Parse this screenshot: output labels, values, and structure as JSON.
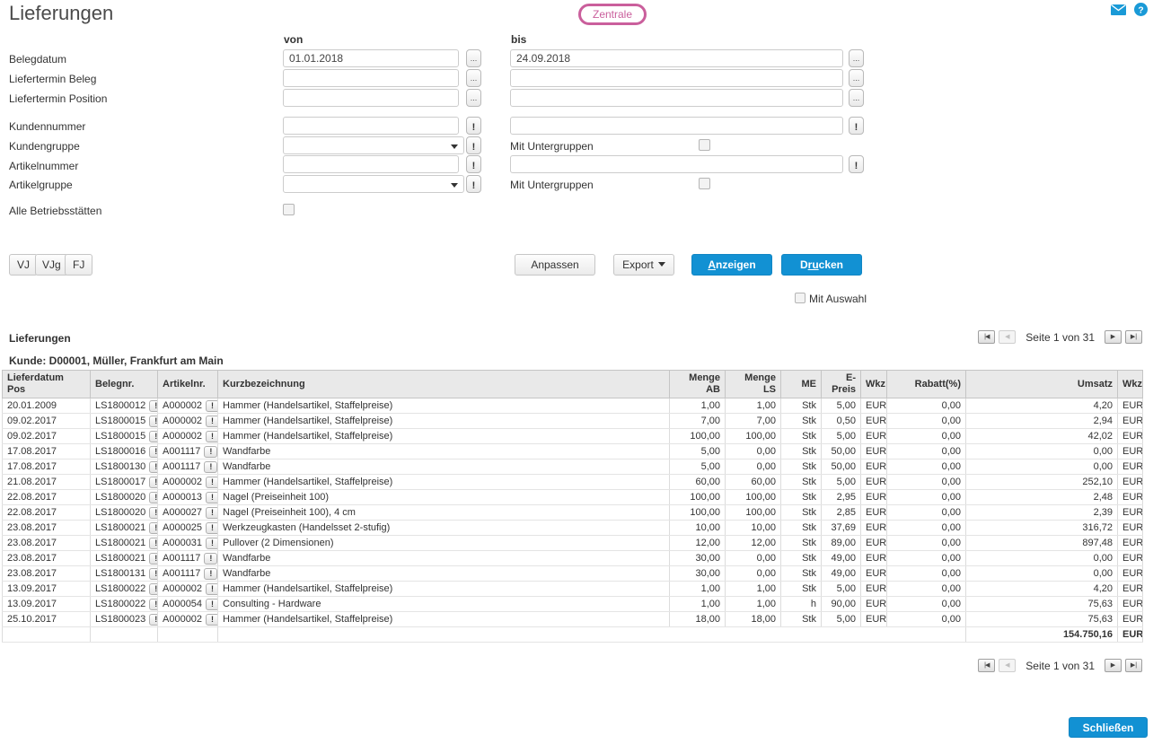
{
  "title": "Lieferungen",
  "top": {
    "zentrale_button": "Zentrale",
    "mail_icon": "mail-icon",
    "help_icon": "help-icon"
  },
  "filter": {
    "von_label": "von",
    "bis_label": "bis",
    "date_rows": [
      {
        "label": "Belegdatum",
        "von": "01.01.2018",
        "bis": "24.09.2018"
      },
      {
        "label": "Liefertermin Beleg",
        "von": "",
        "bis": ""
      },
      {
        "label": "Liefertermin Position",
        "von": "",
        "bis": ""
      }
    ],
    "kundennummer_label": "Kundennummer",
    "kundengruppe_label": "Kundengruppe",
    "artikelnummer_label": "Artikelnummer",
    "artikelgruppe_label": "Artikelgruppe",
    "mit_untergruppen_label_1": "Mit Untergruppen",
    "mit_untergruppen_label_2": "Mit Untergruppen",
    "alle_betriebsstaetten_label": "Alle Betriebsstätten"
  },
  "toolbar": {
    "vj": "VJ",
    "vjg": "VJg",
    "fj": "FJ",
    "anpassen": "Anpassen",
    "export": "Export",
    "anzeigen": {
      "pre": "",
      "key": "A",
      "post": "nzeigen"
    },
    "drucken": {
      "pre": "D",
      "key": "ru",
      "post": "cken"
    },
    "mit_auswahl": "Mit Auswahl"
  },
  "results": {
    "section_title": "Lieferungen",
    "customer_line": "Kunde: D00001, Müller, Frankfurt am Main",
    "pagination_text": "Seite 1 von 31",
    "close_button": "Schließen"
  },
  "table": {
    "headers": [
      "Lieferdatum\nPos",
      "Belegnr.",
      "Artikelnr.",
      "Kurzbezeichnung",
      "Menge AB",
      "Menge LS",
      "ME",
      "E-Preis",
      "Wkz",
      "Rabatt(%)",
      "Umsatz",
      "Wkz"
    ],
    "rows": [
      [
        "20.01.2009",
        "LS1800012",
        "A000002",
        "Hammer (Handelsartikel, Staffelpreise)",
        "1,00",
        "1,00",
        "Stk",
        "5,00",
        "EUR",
        "0,00",
        "4,20",
        "EUR"
      ],
      [
        "09.02.2017",
        "LS1800015",
        "A000002",
        "Hammer (Handelsartikel, Staffelpreise)",
        "7,00",
        "7,00",
        "Stk",
        "0,50",
        "EUR",
        "0,00",
        "2,94",
        "EUR"
      ],
      [
        "09.02.2017",
        "LS1800015",
        "A000002",
        "Hammer (Handelsartikel, Staffelpreise)",
        "100,00",
        "100,00",
        "Stk",
        "5,00",
        "EUR",
        "0,00",
        "42,02",
        "EUR"
      ],
      [
        "17.08.2017",
        "LS1800016",
        "A001117",
        "Wandfarbe",
        "5,00",
        "0,00",
        "Stk",
        "50,00",
        "EUR",
        "0,00",
        "0,00",
        "EUR"
      ],
      [
        "17.08.2017",
        "LS1800130",
        "A001117",
        "Wandfarbe",
        "5,00",
        "0,00",
        "Stk",
        "50,00",
        "EUR",
        "0,00",
        "0,00",
        "EUR"
      ],
      [
        "21.08.2017",
        "LS1800017",
        "A000002",
        "Hammer (Handelsartikel, Staffelpreise)",
        "60,00",
        "60,00",
        "Stk",
        "5,00",
        "EUR",
        "0,00",
        "252,10",
        "EUR"
      ],
      [
        "22.08.2017",
        "LS1800020",
        "A000013",
        "Nagel (Preiseinheit 100)",
        "100,00",
        "100,00",
        "Stk",
        "2,95",
        "EUR",
        "0,00",
        "2,48",
        "EUR"
      ],
      [
        "22.08.2017",
        "LS1800020",
        "A000027",
        "Nagel (Preiseinheit 100), 4 cm",
        "100,00",
        "100,00",
        "Stk",
        "2,85",
        "EUR",
        "0,00",
        "2,39",
        "EUR"
      ],
      [
        "23.08.2017",
        "LS1800021",
        "A000025",
        "Werkzeugkasten (Handelsset 2-stufig)",
        "10,00",
        "10,00",
        "Stk",
        "37,69",
        "EUR",
        "0,00",
        "316,72",
        "EUR"
      ],
      [
        "23.08.2017",
        "LS1800021",
        "A000031",
        "Pullover (2 Dimensionen)",
        "12,00",
        "12,00",
        "Stk",
        "89,00",
        "EUR",
        "0,00",
        "897,48",
        "EUR"
      ],
      [
        "23.08.2017",
        "LS1800021",
        "A001117",
        "Wandfarbe",
        "30,00",
        "0,00",
        "Stk",
        "49,00",
        "EUR",
        "0,00",
        "0,00",
        "EUR"
      ],
      [
        "23.08.2017",
        "LS1800131",
        "A001117",
        "Wandfarbe",
        "30,00",
        "0,00",
        "Stk",
        "49,00",
        "EUR",
        "0,00",
        "0,00",
        "EUR"
      ],
      [
        "13.09.2017",
        "LS1800022",
        "A000002",
        "Hammer (Handelsartikel, Staffelpreise)",
        "1,00",
        "1,00",
        "Stk",
        "5,00",
        "EUR",
        "0,00",
        "4,20",
        "EUR"
      ],
      [
        "13.09.2017",
        "LS1800022",
        "A000054",
        "Consulting - Hardware",
        "1,00",
        "1,00",
        "h",
        "90,00",
        "EUR",
        "0,00",
        "75,63",
        "EUR"
      ],
      [
        "25.10.2017",
        "LS1800023",
        "A000002",
        "Hammer (Handelsartikel, Staffelpreise)",
        "18,00",
        "18,00",
        "Stk",
        "5,00",
        "EUR",
        "0,00",
        "75,63",
        "EUR"
      ]
    ],
    "total": {
      "umsatz": "154.750,16",
      "wkz": "EUR"
    }
  },
  "colors": {
    "accent_blue": "#1291d3",
    "accent_pink": "#ca5f9c",
    "header_gray": "#e9e9e9"
  }
}
